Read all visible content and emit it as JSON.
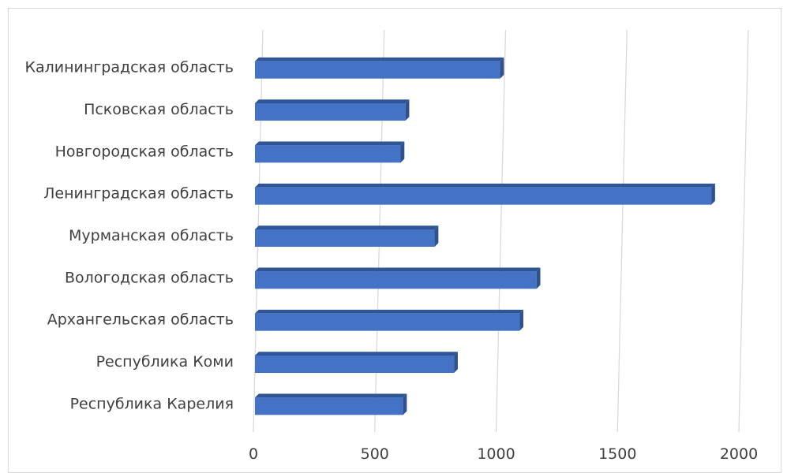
{
  "chart_data": {
    "type": "bar",
    "orientation": "horizontal",
    "title": "",
    "xlabel": "",
    "ylabel": "",
    "categories": [
      "Республика Карелия",
      "Республика Коми",
      "Архангельская область",
      "Вологодская область",
      "Мурманская область",
      "Ленинградская область",
      "Новгородская область",
      "Псковская область",
      "Калининградская область"
    ],
    "values": [
      610,
      820,
      1090,
      1160,
      740,
      1880,
      600,
      620,
      1010
    ],
    "xlim": [
      0,
      2000
    ],
    "xticks": [
      "0",
      "500",
      "1000",
      "1500",
      "2000"
    ],
    "grid": true,
    "legend": "none",
    "colors": {
      "bar_front": "#4472c4",
      "bar_side": "#2f528f",
      "bar_top": "#2f5597",
      "grid": "#d9d9d9",
      "text": "#404040"
    }
  }
}
